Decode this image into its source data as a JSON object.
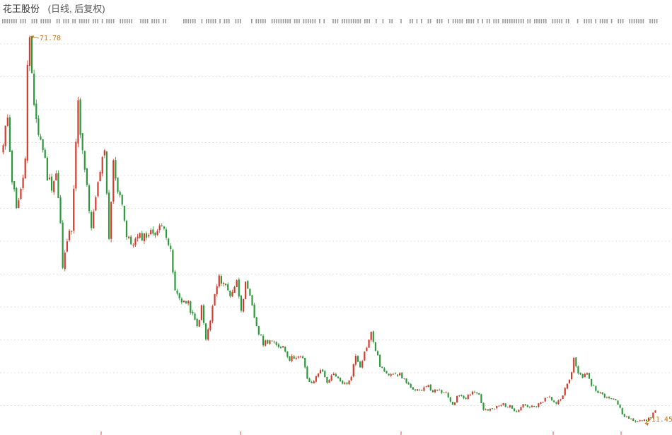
{
  "header": {
    "stock_name": "花王股份",
    "period_label": "(日线, 后复权)"
  },
  "colors": {
    "up": "#d23a2c",
    "down": "#2b9a3a",
    "annotation": "#c8741e",
    "grid": "#e3e3e3"
  },
  "chart_data": {
    "type": "candlestick",
    "title": "花王股份",
    "subtitle": "(日线, 后复权)",
    "y_scale": "linear",
    "ylim": [
      10,
      73
    ],
    "grid": true,
    "annotations": [
      {
        "label": "71.78",
        "kind": "max",
        "index": 12,
        "value": 71.78
      },
      {
        "label": "11.45",
        "kind": "min",
        "index": 291,
        "value": 11.45
      }
    ],
    "close_anchor_points": [
      [
        0,
        54.5
      ],
      [
        2,
        59.5
      ],
      [
        4,
        49.5
      ],
      [
        6,
        45.5
      ],
      [
        8,
        47.5
      ],
      [
        10,
        52.5
      ],
      [
        11,
        66.5
      ],
      [
        12,
        70.5
      ],
      [
        14,
        61.5
      ],
      [
        16,
        56.5
      ],
      [
        18,
        54.5
      ],
      [
        20,
        50.0
      ],
      [
        22,
        48.5
      ],
      [
        24,
        50.5
      ],
      [
        26,
        42.5
      ],
      [
        27,
        35.5
      ],
      [
        29,
        40.0
      ],
      [
        31,
        42.0
      ],
      [
        33,
        55.5
      ],
      [
        34,
        61.0
      ],
      [
        36,
        53.5
      ],
      [
        38,
        48.0
      ],
      [
        40,
        41.5
      ],
      [
        42,
        46.5
      ],
      [
        44,
        51.0
      ],
      [
        46,
        53.5
      ],
      [
        48,
        40.0
      ],
      [
        50,
        52.0
      ],
      [
        52,
        48.0
      ],
      [
        54,
        46.0
      ],
      [
        56,
        40.5
      ],
      [
        58,
        39.5
      ],
      [
        62,
        40.5
      ],
      [
        66,
        41.0
      ],
      [
        70,
        41.5
      ],
      [
        73,
        42.5
      ],
      [
        76,
        38.0
      ],
      [
        78,
        32.0
      ],
      [
        80,
        31.0
      ],
      [
        84,
        30.0
      ],
      [
        88,
        26.5
      ],
      [
        90,
        29.5
      ],
      [
        92,
        24.5
      ],
      [
        94,
        27.5
      ],
      [
        96,
        31.5
      ],
      [
        98,
        34.0
      ],
      [
        100,
        33.5
      ],
      [
        103,
        31.5
      ],
      [
        106,
        33.5
      ],
      [
        108,
        29.5
      ],
      [
        110,
        33.0
      ],
      [
        112,
        31.0
      ],
      [
        114,
        28.0
      ],
      [
        116,
        25.5
      ],
      [
        118,
        24.0
      ],
      [
        121,
        24.5
      ],
      [
        124,
        23.5
      ],
      [
        127,
        23.5
      ],
      [
        130,
        21.5
      ],
      [
        133,
        22.0
      ],
      [
        136,
        21.5
      ],
      [
        138,
        18.5
      ],
      [
        140,
        17.5
      ],
      [
        144,
        20.0
      ],
      [
        147,
        18.0
      ],
      [
        150,
        19.0
      ],
      [
        153,
        18.0
      ],
      [
        156,
        17.5
      ],
      [
        158,
        19.0
      ],
      [
        160,
        22.0
      ],
      [
        162,
        20.5
      ],
      [
        164,
        22.5
      ],
      [
        167,
        25.5
      ],
      [
        169,
        23.0
      ],
      [
        171,
        20.5
      ],
      [
        174,
        19.0
      ],
      [
        177,
        19.5
      ],
      [
        180,
        19.0
      ],
      [
        183,
        18.0
      ],
      [
        186,
        16.5
      ],
      [
        189,
        16.5
      ],
      [
        192,
        17.5
      ],
      [
        195,
        16.5
      ],
      [
        198,
        16.5
      ],
      [
        201,
        16.0
      ],
      [
        204,
        14.5
      ],
      [
        207,
        16.0
      ],
      [
        210,
        15.5
      ],
      [
        213,
        16.5
      ],
      [
        216,
        16.0
      ],
      [
        218,
        13.5
      ],
      [
        221,
        13.5
      ],
      [
        224,
        14.0
      ],
      [
        227,
        14.5
      ],
      [
        230,
        14.0
      ],
      [
        233,
        13.5
      ],
      [
        236,
        14.5
      ],
      [
        239,
        14.0
      ],
      [
        242,
        14.0
      ],
      [
        245,
        15.0
      ],
      [
        248,
        15.5
      ],
      [
        251,
        14.5
      ],
      [
        254,
        16.0
      ],
      [
        257,
        18.0
      ],
      [
        259,
        21.5
      ],
      [
        261,
        19.5
      ],
      [
        263,
        18.5
      ],
      [
        265,
        19.5
      ],
      [
        267,
        17.5
      ],
      [
        270,
        16.5
      ],
      [
        273,
        15.5
      ],
      [
        276,
        15.5
      ],
      [
        279,
        14.5
      ],
      [
        282,
        12.5
      ],
      [
        285,
        12.5
      ],
      [
        287,
        11.8
      ],
      [
        289,
        12.0
      ],
      [
        291,
        11.8
      ],
      [
        294,
        12.5
      ],
      [
        296,
        13.5
      ]
    ]
  }
}
